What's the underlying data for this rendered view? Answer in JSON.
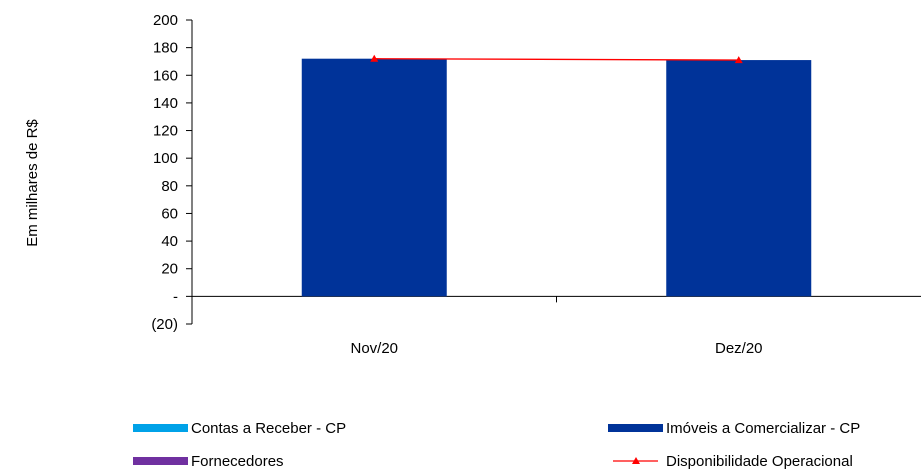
{
  "chart_data": {
    "type": "bar",
    "ylabel": "Em milhares de R$",
    "categories": [
      "Nov/20",
      "Dez/20"
    ],
    "ylim": [
      -20,
      200
    ],
    "yticks": [
      {
        "value": 200,
        "label": "200"
      },
      {
        "value": 180,
        "label": "180"
      },
      {
        "value": 160,
        "label": "160"
      },
      {
        "value": 140,
        "label": "140"
      },
      {
        "value": 120,
        "label": "120"
      },
      {
        "value": 100,
        "label": "100"
      },
      {
        "value": 80,
        "label": "80"
      },
      {
        "value": 60,
        "label": "60"
      },
      {
        "value": 40,
        "label": "40"
      },
      {
        "value": 20,
        "label": "20"
      },
      {
        "value": 0,
        "label": "-"
      },
      {
        "value": -20,
        "label": "(20)"
      }
    ],
    "series": [
      {
        "name": "Contas a Receber  - CP",
        "kind": "bar",
        "color": "#00a2e8",
        "values": [
          0,
          0
        ]
      },
      {
        "name": "Imóveis a Comercializar - CP",
        "kind": "bar",
        "color": "#003399",
        "values": [
          172,
          171
        ]
      },
      {
        "name": "Fornecedores",
        "kind": "bar",
        "color": "#7030a0",
        "values": [
          0,
          0
        ]
      },
      {
        "name": "Disponibilidade Operacional",
        "kind": "line",
        "color": "#ff0000",
        "marker": "triangle",
        "values": [
          172,
          171
        ]
      }
    ],
    "grid": false,
    "legend_position": "bottom"
  }
}
